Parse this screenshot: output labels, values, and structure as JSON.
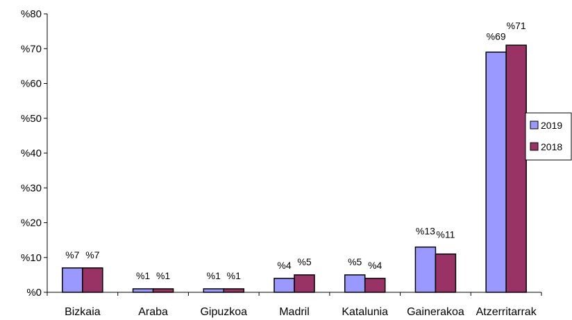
{
  "chart_data": {
    "type": "bar",
    "categories": [
      "Bizkaia",
      "Araba",
      "Gipuzkoa",
      "Madril",
      "Katalunia",
      "Gainerakoa",
      "Atzerritarrak"
    ],
    "series": [
      {
        "name": "2019",
        "color": "#9999ff",
        "values": [
          7,
          1,
          1,
          4,
          5,
          13,
          69
        ],
        "labels": [
          "%7",
          "%1",
          "%1",
          "%4",
          "%5",
          "%13",
          "%69"
        ]
      },
      {
        "name": "2018",
        "color": "#993366",
        "values": [
          7,
          1,
          1,
          5,
          4,
          11,
          71
        ],
        "labels": [
          "%7",
          "%1",
          "%1",
          "%5",
          "%4",
          "%11",
          "%71"
        ]
      }
    ],
    "y_ticks": [
      "%0",
      "%10",
      "%20",
      "%30",
      "%40",
      "%50",
      "%60",
      "%70",
      "%80"
    ],
    "ylim": [
      0,
      80
    ],
    "grid": false,
    "legend_position": "right",
    "title": "",
    "xlabel": "",
    "ylabel": ""
  }
}
